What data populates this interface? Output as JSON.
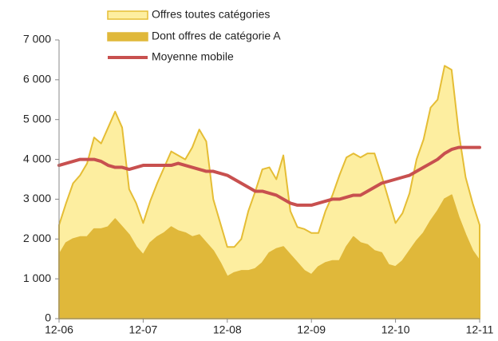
{
  "chart_data": {
    "type": "area",
    "categories": [
      "12-06",
      null,
      null,
      null,
      null,
      null,
      null,
      null,
      null,
      null,
      null,
      null,
      "12-07",
      null,
      null,
      null,
      null,
      null,
      null,
      null,
      null,
      null,
      null,
      null,
      "12-08",
      null,
      null,
      null,
      null,
      null,
      null,
      null,
      null,
      null,
      null,
      null,
      "12-09",
      null,
      null,
      null,
      null,
      null,
      null,
      null,
      null,
      null,
      null,
      null,
      "12-10",
      null,
      null,
      null,
      null,
      null,
      null,
      null,
      null,
      null,
      null,
      null,
      "12-11"
    ],
    "series": [
      {
        "name": "Offres toutes catégories",
        "type": "area",
        "color": "#fdeea0",
        "stroke": "#e5bd35",
        "values": [
          2350,
          2900,
          3400,
          3600,
          3900,
          4550,
          4400,
          4800,
          5200,
          4800,
          3250,
          2900,
          2400,
          2950,
          3400,
          3800,
          4200,
          4100,
          4000,
          4300,
          4750,
          4450,
          3000,
          2400,
          1800,
          1800,
          2000,
          2700,
          3200,
          3750,
          3800,
          3500,
          4100,
          2700,
          2300,
          2250,
          2150,
          2150,
          2700,
          3100,
          3600,
          4050,
          4150,
          4050,
          4150,
          4150,
          3600,
          3000,
          2400,
          2650,
          3150,
          4000,
          4500,
          5300,
          5500,
          6350,
          6250,
          4700,
          3550,
          2900,
          2350
        ]
      },
      {
        "name": "Dont offres de catégorie A",
        "type": "area",
        "color": "#e0b83a",
        "stroke": "#e0b83a",
        "values": [
          1600,
          1900,
          2000,
          2050,
          2050,
          2250,
          2250,
          2300,
          2500,
          2300,
          2100,
          1800,
          1600,
          1900,
          2050,
          2150,
          2300,
          2200,
          2150,
          2050,
          2100,
          1900,
          1700,
          1400,
          1050,
          1150,
          1200,
          1200,
          1250,
          1400,
          1650,
          1750,
          1800,
          1600,
          1400,
          1200,
          1100,
          1300,
          1400,
          1450,
          1450,
          1800,
          2050,
          1900,
          1850,
          1700,
          1650,
          1350,
          1300,
          1450,
          1700,
          1950,
          2150,
          2450,
          2700,
          3000,
          3100,
          2550,
          2100,
          1700,
          1450
        ]
      },
      {
        "name": "Moyenne mobile",
        "type": "line",
        "color": "#c8504f",
        "values": [
          3850,
          3900,
          3950,
          4000,
          4000,
          4000,
          3950,
          3850,
          3800,
          3800,
          3750,
          3800,
          3850,
          3850,
          3850,
          3850,
          3850,
          3900,
          3850,
          3800,
          3750,
          3700,
          3700,
          3650,
          3600,
          3500,
          3400,
          3300,
          3200,
          3200,
          3150,
          3100,
          3000,
          2900,
          2850,
          2850,
          2850,
          2900,
          2950,
          3000,
          3000,
          3050,
          3100,
          3100,
          3200,
          3300,
          3400,
          3450,
          3500,
          3550,
          3600,
          3700,
          3800,
          3900,
          4000,
          4150,
          4250,
          4300,
          4300,
          4300,
          4300
        ]
      }
    ],
    "ylim": [
      0,
      7000
    ],
    "yticks": [
      0,
      {
        "value": 1000,
        "label": "1 000"
      },
      {
        "value": 2000,
        "label": "2 000"
      },
      {
        "value": 3000,
        "label": "3 000"
      },
      {
        "value": 4000,
        "label": "4 000"
      },
      {
        "value": 5000,
        "label": "5 000"
      },
      {
        "value": 6000,
        "label": "6 000"
      },
      {
        "value": 7000,
        "label": "7 000"
      }
    ],
    "grid": false
  }
}
